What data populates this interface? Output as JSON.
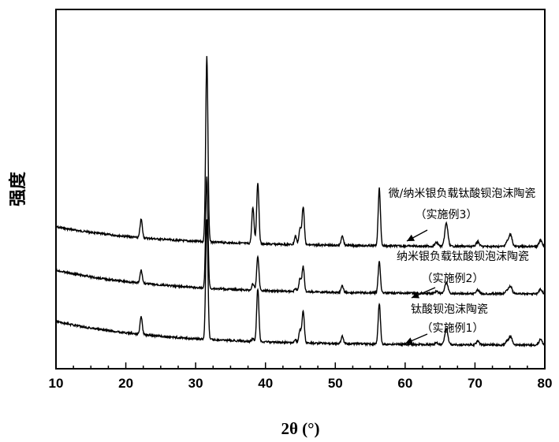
{
  "chart_data": {
    "type": "line",
    "xlabel": "2θ (°)",
    "ylabel": "强度",
    "xlim": [
      10,
      80
    ],
    "xticks": [
      "10",
      "20",
      "30",
      "40",
      "50",
      "60",
      "70",
      "80"
    ],
    "grid": false,
    "peaks": [
      {
        "x": 22.2,
        "h": [
          1.0,
          0.7,
          0.96
        ]
      },
      {
        "x": 31.6,
        "h": [
          10.0,
          6.0,
          6.5
        ]
      },
      {
        "x": 38.2,
        "h": [
          1.95,
          0.35,
          0.15
        ]
      },
      {
        "x": 38.9,
        "h": [
          3.3,
          1.85,
          2.85
        ]
      },
      {
        "x": 44.3,
        "h": [
          0.45,
          0.15,
          0.15
        ]
      },
      {
        "x": 44.95,
        "h": [
          0.85,
          0.7,
          0.7
        ]
      },
      {
        "x": 45.4,
        "h": [
          2.05,
          1.35,
          1.75
        ]
      },
      {
        "x": 51.0,
        "h": [
          0.55,
          0.35,
          0.4
        ]
      },
      {
        "x": 56.3,
        "h": [
          3.1,
          1.7,
          2.2
        ]
      },
      {
        "x": 64.5,
        "h": [
          0.2,
          0.1,
          0.1
        ]
      },
      {
        "x": 65.9,
        "h": [
          1.25,
          0.6,
          0.85
        ]
      },
      {
        "x": 70.4,
        "h": [
          0.25,
          0.2,
          0.2
        ]
      },
      {
        "x": 74.6,
        "h": [
          0.25,
          0.2,
          0.2
        ]
      },
      {
        "x": 75.1,
        "h": [
          0.65,
          0.4,
          0.45
        ]
      },
      {
        "x": 79.4,
        "h": [
          0.35,
          0.25,
          0.3
        ]
      }
    ],
    "series": [
      {
        "annotation": "微/纳米银负载钛酸钡泡沫陶瓷",
        "example": "（实施例3）"
      },
      {
        "annotation": "纳米银负载钛酸钡泡沫陶瓷",
        "example": "（实施例2）"
      },
      {
        "annotation": "钛酸钡泡沫陶瓷",
        "example": "（实施例1）"
      }
    ]
  }
}
